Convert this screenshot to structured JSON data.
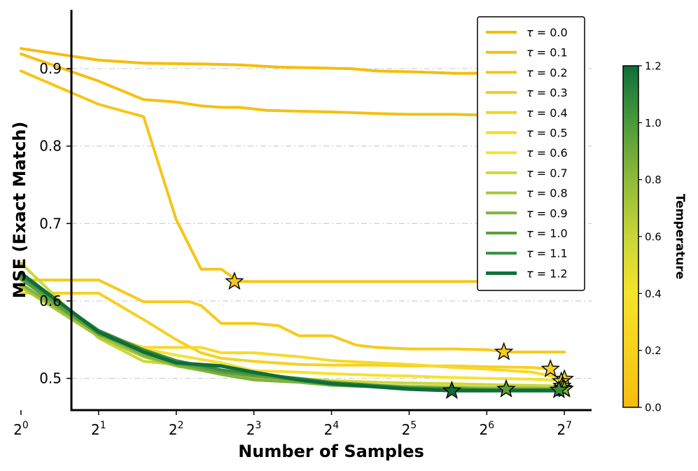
{
  "chart_data": {
    "type": "line",
    "xlabel": "Number of Samples",
    "ylabel": "MSE (Exact Match)",
    "x_scale": "log2",
    "xlim": [
      0.65,
      7.35
    ],
    "ylim": [
      0.459,
      0.976
    ],
    "xticks": [
      {
        "exp": 0,
        "base": "2",
        "sup": "0"
      },
      {
        "exp": 1,
        "base": "2",
        "sup": "1"
      },
      {
        "exp": 2,
        "base": "2",
        "sup": "2"
      },
      {
        "exp": 3,
        "base": "2",
        "sup": "3"
      },
      {
        "exp": 4,
        "base": "2",
        "sup": "4"
      },
      {
        "exp": 5,
        "base": "2",
        "sup": "5"
      },
      {
        "exp": 6,
        "base": "2",
        "sup": "6"
      },
      {
        "exp": 7,
        "base": "2",
        "sup": "7"
      }
    ],
    "yticks": [
      {
        "value": 0.5,
        "label": "0.5"
      },
      {
        "value": 0.6,
        "label": "0.6"
      },
      {
        "value": 0.7,
        "label": "0.7"
      },
      {
        "value": 0.8,
        "label": "0.8"
      },
      {
        "value": 0.9,
        "label": "0.9"
      }
    ],
    "grid": "horizontal dashed",
    "legend_position": "top-right",
    "colorbar": {
      "label": "Temperature",
      "range": [
        0.0,
        1.2
      ],
      "ticks": [
        {
          "value": 0.0,
          "label": "0.0"
        },
        {
          "value": 0.2,
          "label": "0.2"
        },
        {
          "value": 0.4,
          "label": "0.4"
        },
        {
          "value": 0.6,
          "label": "0.6"
        },
        {
          "value": 0.8,
          "label": "0.8"
        },
        {
          "value": 1.0,
          "label": "1.0"
        },
        {
          "value": 1.2,
          "label": "1.2"
        }
      ],
      "colors": [
        "#f5bd0c",
        "#f7d21c",
        "#f5e42a",
        "#c8d638",
        "#8fba3a",
        "#4c9a3c",
        "#0e6e3a"
      ]
    },
    "series": [
      {
        "name": "τ = 0.0",
        "legend_symbol": "τ",
        "legend_value": "= 0.0",
        "color": "#f5bd0c",
        "width": 4,
        "x": [
          0,
          1,
          1.58,
          2.32,
          2.81,
          3.32,
          3.81,
          4.25,
          4.58,
          5,
          5.32,
          5.58,
          6,
          6.32,
          6.58,
          6.81,
          7
        ],
        "y": [
          0.926,
          0.911,
          0.907,
          0.906,
          0.905,
          0.902,
          0.901,
          0.9,
          0.897,
          0.896,
          0.895,
          0.894,
          0.894,
          0.894,
          0.894,
          0.894,
          0.894
        ],
        "star": [
          6.66,
          0.894
        ]
      },
      {
        "name": "τ = 0.1",
        "legend_symbol": "τ",
        "legend_value": "= 0.1",
        "color": "#f5c012",
        "width": 4,
        "x": [
          0,
          1,
          1.58,
          2,
          2.32,
          2.58,
          2.81,
          3,
          3.17,
          3.58,
          4,
          4.32,
          4.58,
          5,
          5.58,
          6,
          6.32,
          6.58,
          7
        ],
        "y": [
          0.919,
          0.884,
          0.86,
          0.857,
          0.852,
          0.85,
          0.85,
          0.848,
          0.846,
          0.845,
          0.844,
          0.843,
          0.842,
          0.841,
          0.841,
          0.84,
          0.84,
          0.84,
          0.84
        ],
        "star": [
          6.95,
          0.837
        ]
      },
      {
        "name": "τ = 0.2",
        "legend_symbol": "τ",
        "legend_value": "= 0.2",
        "color": "#f6c519",
        "width": 4,
        "x": [
          0,
          1,
          1.58,
          2,
          2.32,
          2.58,
          2.81,
          3,
          3.58,
          4,
          5,
          6,
          7
        ],
        "y": [
          0.897,
          0.854,
          0.838,
          0.705,
          0.641,
          0.641,
          0.625,
          0.625,
          0.625,
          0.625,
          0.625,
          0.625,
          0.625
        ],
        "star": [
          2.75,
          0.625
        ]
      },
      {
        "name": "τ = 0.3",
        "legend_symbol": "τ",
        "legend_value": "= 0.3",
        "color": "#f6ca1e",
        "width": 4,
        "x": [
          0,
          1,
          1.58,
          2.17,
          2.32,
          2.58,
          3,
          3.32,
          3.58,
          4,
          4.32,
          4.58,
          5,
          5.58,
          6,
          6.32,
          6.58,
          7
        ],
        "y": [
          0.627,
          0.627,
          0.599,
          0.599,
          0.594,
          0.571,
          0.571,
          0.568,
          0.555,
          0.555,
          0.543,
          0.54,
          0.538,
          0.538,
          0.537,
          0.534,
          0.534,
          0.534
        ],
        "star": [
          6.22,
          0.534
        ]
      },
      {
        "name": "τ = 0.4",
        "legend_symbol": "τ",
        "legend_value": "= 0.4",
        "color": "#f7d023",
        "width": 4,
        "x": [
          0,
          1,
          1.58,
          2,
          2.32,
          2.58,
          3,
          3.58,
          4,
          4.58,
          5,
          5.58,
          6,
          6.58,
          6.81
        ],
        "y": [
          0.61,
          0.61,
          0.576,
          0.55,
          0.533,
          0.526,
          0.522,
          0.518,
          0.517,
          0.517,
          0.516,
          0.516,
          0.515,
          0.514,
          0.512
        ],
        "star": [
          6.82,
          0.512
        ]
      },
      {
        "name": "τ = 0.5",
        "legend_symbol": "τ",
        "legend_value": "= 0.5",
        "color": "#f7d929",
        "width": 4,
        "x": [
          0,
          1,
          1.58,
          2.32,
          2.58,
          3,
          3.58,
          4,
          4.58,
          5,
          5.58,
          6,
          6.58,
          7
        ],
        "y": [
          0.628,
          0.558,
          0.54,
          0.54,
          0.533,
          0.533,
          0.528,
          0.523,
          0.52,
          0.518,
          0.514,
          0.512,
          0.508,
          0.5
        ],
        "star": [
          7.0,
          0.499
        ]
      },
      {
        "name": "τ = 0.6",
        "legend_symbol": "τ",
        "legend_value": "= 0.6",
        "color": "#f5e230",
        "width": 4,
        "x": [
          0,
          1,
          1.58,
          2,
          2.58,
          3,
          3.58,
          4,
          4.58,
          5,
          5.58,
          6,
          6.58,
          7
        ],
        "y": [
          0.62,
          0.556,
          0.538,
          0.53,
          0.52,
          0.51,
          0.508,
          0.506,
          0.504,
          0.503,
          0.501,
          0.5,
          0.499,
          0.497
        ],
        "star": [
          6.96,
          0.496
        ]
      },
      {
        "name": "τ = 0.7",
        "legend_symbol": "τ",
        "legend_value": "= 0.7",
        "color": "#ccd838",
        "width": 4,
        "x": [
          0,
          1,
          1.58,
          2,
          2.58,
          3,
          3.58,
          4,
          4.58,
          5,
          5.58,
          6,
          6.58,
          7
        ],
        "y": [
          0.649,
          0.552,
          0.522,
          0.518,
          0.51,
          0.505,
          0.5,
          0.497,
          0.495,
          0.494,
          0.493,
          0.492,
          0.491,
          0.49
        ],
        "star": [
          6.97,
          0.49
        ]
      },
      {
        "name": "τ = 0.8",
        "legend_symbol": "τ",
        "legend_value": "= 0.8",
        "color": "#a7c63b",
        "width": 4,
        "x": [
          0,
          1,
          1.58,
          2,
          2.58,
          3,
          3.58,
          4,
          4.58,
          5,
          5.58,
          6,
          6.58,
          7
        ],
        "y": [
          0.618,
          0.554,
          0.528,
          0.516,
          0.506,
          0.5,
          0.496,
          0.493,
          0.491,
          0.49,
          0.489,
          0.488,
          0.488,
          0.487
        ],
        "star": [
          6.98,
          0.487
        ]
      },
      {
        "name": "τ = 0.9",
        "legend_symbol": "τ",
        "legend_value": "= 0.9",
        "color": "#7fb23d",
        "width": 4,
        "x": [
          0,
          1,
          1.58,
          2,
          2.58,
          3,
          3.58,
          4,
          4.58,
          5,
          5.58,
          6,
          6.58,
          7
        ],
        "y": [
          0.622,
          0.558,
          0.53,
          0.517,
          0.505,
          0.498,
          0.495,
          0.491,
          0.489,
          0.488,
          0.487,
          0.486,
          0.486,
          0.486
        ],
        "star": [
          7.0,
          0.486
        ]
      },
      {
        "name": "τ = 1.0",
        "legend_symbol": "τ",
        "legend_value": "= 1.0",
        "color": "#5e9e3e",
        "width": 4,
        "x": [
          0,
          1,
          1.58,
          2,
          2.58,
          3,
          3.58,
          4,
          4.58,
          5,
          5.58,
          6,
          6.58,
          7
        ],
        "y": [
          0.628,
          0.557,
          0.535,
          0.52,
          0.508,
          0.503,
          0.498,
          0.494,
          0.49,
          0.488,
          0.487,
          0.486,
          0.486,
          0.486
        ],
        "star": [
          6.25,
          0.486
        ]
      },
      {
        "name": "τ = 1.1",
        "legend_symbol": "τ",
        "legend_value": "= 1.1",
        "color": "#3a8c3e",
        "width": 4,
        "x": [
          0,
          1,
          1.58,
          2,
          2.58,
          3,
          3.58,
          4,
          4.58,
          5,
          5.58,
          6,
          6.58,
          7
        ],
        "y": [
          0.632,
          0.562,
          0.537,
          0.523,
          0.511,
          0.506,
          0.5,
          0.495,
          0.491,
          0.488,
          0.486,
          0.485,
          0.485,
          0.485
        ],
        "star": [
          6.93,
          0.485
        ]
      },
      {
        "name": "τ = 1.2",
        "legend_symbol": "τ",
        "legend_value": "= 1.2",
        "color": "#0e6e3a",
        "width": 5,
        "x": [
          0,
          1,
          1.58,
          2,
          2.58,
          3,
          3.58,
          4,
          4.58,
          5,
          5.58,
          6,
          6.58,
          7
        ],
        "y": [
          0.636,
          0.56,
          0.534,
          0.52,
          0.516,
          0.508,
          0.498,
          0.493,
          0.489,
          0.486,
          0.484,
          0.484,
          0.484,
          0.484
        ],
        "star": [
          5.55,
          0.484
        ]
      }
    ]
  }
}
